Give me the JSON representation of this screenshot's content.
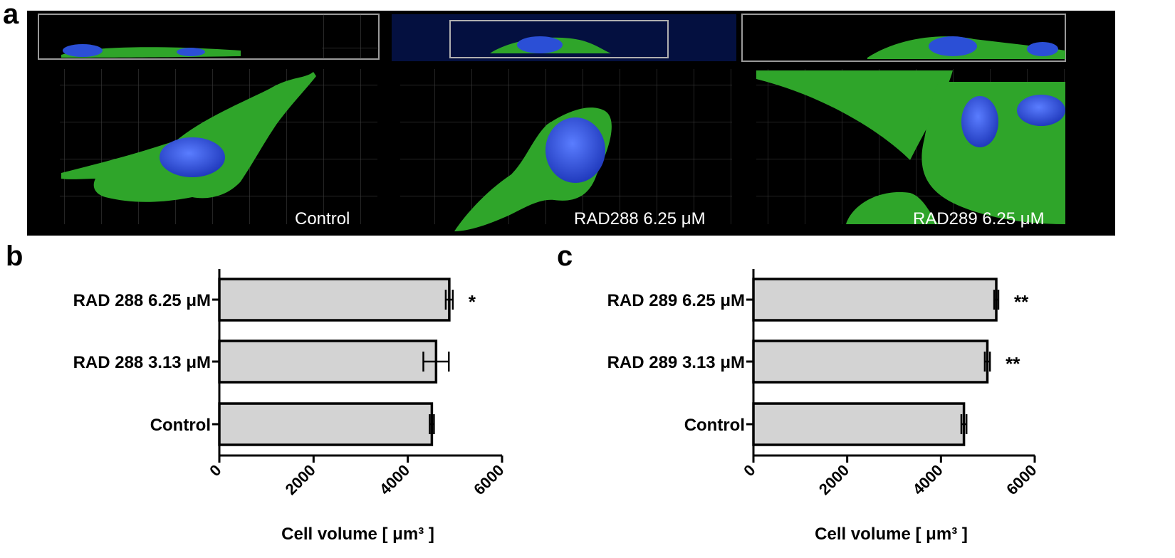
{
  "panels": {
    "a": "a",
    "b": "b",
    "c": "c"
  },
  "micrographs": [
    {
      "label": "Control"
    },
    {
      "label": "RAD288 6.25 μM"
    },
    {
      "label": "RAD289 6.25 μM"
    }
  ],
  "colors": {
    "background": "#000000",
    "membrane": "#2fa52a",
    "nucleus": "#2b4fd6",
    "bar_fill": "#d3d3d3",
    "bar_edge": "#000000"
  },
  "chart_data": [
    {
      "type": "bar",
      "orientation": "horizontal",
      "panel": "b",
      "categories": [
        "RAD 288 6.25  μM",
        "RAD 288 3.13  μM",
        "Control"
      ],
      "values": [
        4880,
        4600,
        4510
      ],
      "errors": [
        75,
        270,
        45
      ],
      "significance": [
        "*",
        "",
        ""
      ],
      "xlabel": "Cell volume [ μm³ ]",
      "xlim": [
        0,
        6000
      ],
      "xticks": [
        "0",
        "2000",
        "4000",
        "6000"
      ],
      "grid": false
    },
    {
      "type": "bar",
      "orientation": "horizontal",
      "panel": "c",
      "categories": [
        "RAD 289 6.25  μM",
        "RAD 289 3.13  μM",
        "Control"
      ],
      "values": [
        5180,
        4990,
        4490
      ],
      "errors": [
        45,
        55,
        55
      ],
      "significance": [
        "**",
        "**",
        ""
      ],
      "xlabel": "Cell volume [ μm³ ]",
      "xlim": [
        0,
        6000
      ],
      "xticks": [
        "0",
        "2000",
        "4000",
        "6000"
      ],
      "grid": false
    }
  ]
}
